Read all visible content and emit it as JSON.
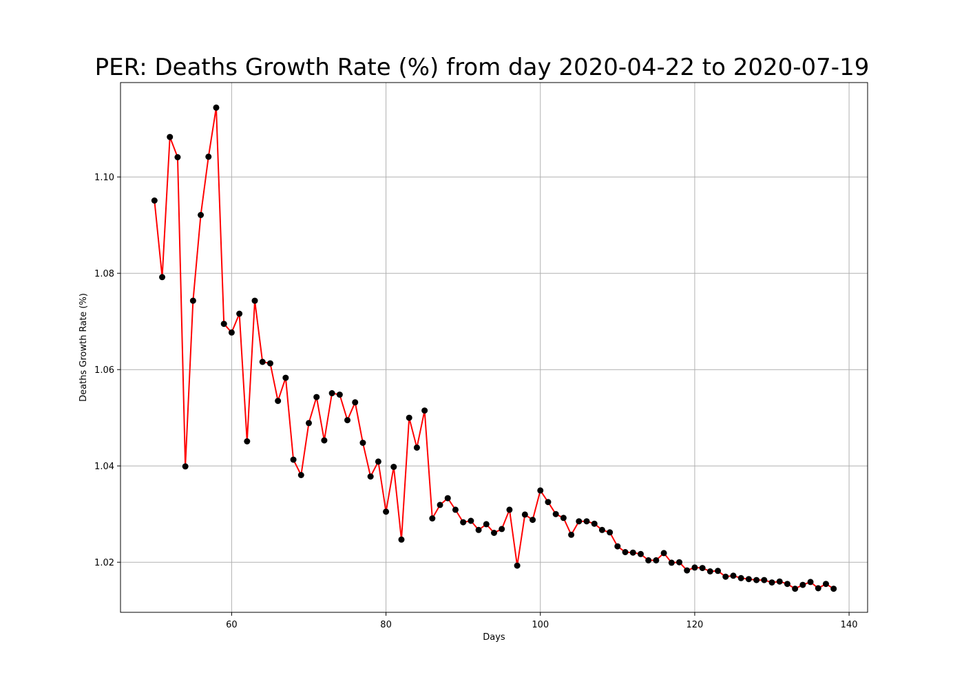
{
  "chart_data": {
    "type": "line",
    "title": "PER: Deaths Growth Rate (%) from day 2020-04-22 to 2020-07-19",
    "xlabel": "Days",
    "ylabel": "Deaths Growth Rate (%)",
    "xlim": [
      45.6,
      142.4
    ],
    "ylim": [
      1.0096,
      1.1196
    ],
    "xticks": [
      60,
      80,
      100,
      120,
      140
    ],
    "yticks": [
      1.02,
      1.04,
      1.06,
      1.08,
      1.1
    ],
    "xtick_labels": [
      "60",
      "80",
      "100",
      "120",
      "140"
    ],
    "ytick_labels": [
      "1.02",
      "1.04",
      "1.06",
      "1.08",
      "1.10"
    ],
    "grid": true,
    "line_color": "#ff0000",
    "marker_color": "#000000",
    "series": [
      {
        "x": [
          50,
          51,
          52,
          53,
          54,
          55,
          56,
          57,
          58,
          59,
          60,
          61,
          62,
          63,
          64,
          65,
          66,
          67,
          68,
          69,
          70,
          71,
          72,
          73,
          74,
          75,
          76,
          77,
          78,
          79,
          80,
          81,
          82,
          83,
          84,
          85,
          86,
          87,
          88,
          89,
          90,
          91,
          92,
          93,
          94,
          95,
          96,
          97,
          98,
          99,
          100,
          101,
          102,
          103,
          104,
          105,
          106,
          107,
          108,
          109,
          110,
          111,
          112,
          113,
          114,
          115,
          116,
          117,
          118,
          119,
          120,
          121,
          122,
          123,
          124,
          125,
          126,
          127,
          128,
          129,
          130,
          131,
          132,
          133,
          134,
          135,
          136,
          137,
          138
        ],
        "y": [
          1.0951,
          1.0792,
          1.1083,
          1.1041,
          1.0399,
          1.0743,
          1.0921,
          1.1042,
          1.1144,
          1.0695,
          1.0677,
          1.0716,
          1.0451,
          1.0743,
          1.0616,
          1.0613,
          1.0535,
          1.0583,
          1.0413,
          1.0381,
          1.0489,
          1.0543,
          1.0453,
          1.0551,
          1.0548,
          1.0495,
          1.0532,
          1.0448,
          1.0378,
          1.0409,
          1.0305,
          1.0398,
          1.0247,
          1.05,
          1.0438,
          1.0515,
          1.0291,
          1.0319,
          1.0333,
          1.0309,
          1.0283,
          1.0286,
          1.0267,
          1.0279,
          1.0261,
          1.0269,
          1.0309,
          1.0193,
          1.0299,
          1.0288,
          1.0349,
          1.0325,
          1.03,
          1.0292,
          1.0257,
          1.0285,
          1.0285,
          1.028,
          1.0267,
          1.0262,
          1.0233,
          1.0221,
          1.022,
          1.0217,
          1.0204,
          1.0204,
          1.0219,
          1.0199,
          1.02,
          1.0183,
          1.0189,
          1.0188,
          1.0181,
          1.0182,
          1.017,
          1.0172,
          1.0167,
          1.0165,
          1.0163,
          1.0163,
          1.0158,
          1.016,
          1.0155,
          1.0145,
          1.0153,
          1.0159,
          1.0146,
          1.0155,
          1.0145
        ]
      }
    ]
  }
}
